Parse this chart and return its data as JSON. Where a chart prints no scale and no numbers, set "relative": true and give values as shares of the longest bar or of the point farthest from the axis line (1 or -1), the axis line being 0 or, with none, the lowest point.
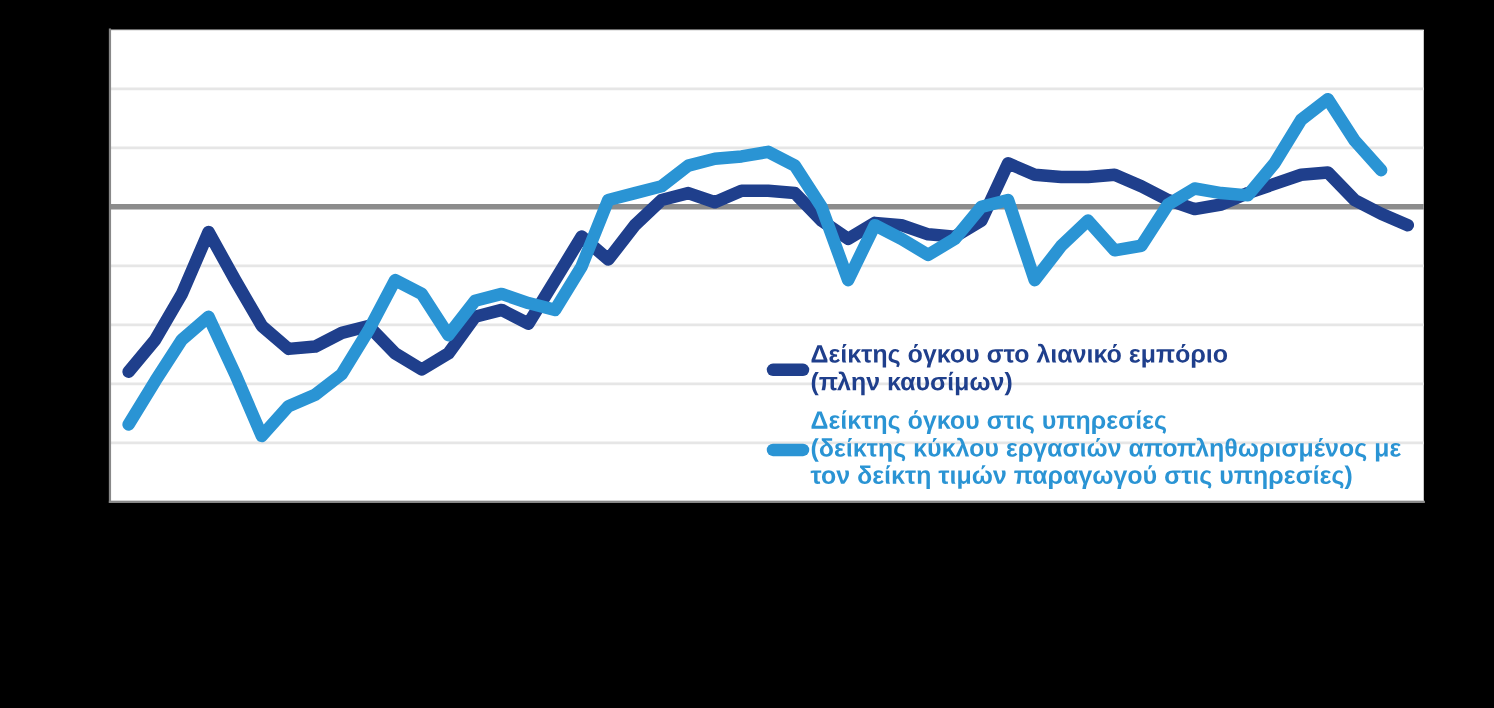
{
  "chart_data": {
    "type": "line",
    "relative": true,
    "grid": "y",
    "legend": "bottom right",
    "line_style": "solid",
    "marker": "none",
    "categories": [
      null,
      null,
      null,
      null,
      null,
      null,
      null,
      null,
      null,
      null,
      null,
      null,
      null,
      null,
      null,
      null,
      null,
      null,
      null,
      null,
      null,
      null,
      null,
      null,
      null,
      null,
      null,
      null,
      null,
      null,
      null,
      null,
      null,
      null,
      null,
      null,
      null,
      null,
      null,
      null,
      null,
      null,
      null,
      null,
      null,
      null,
      null,
      null,
      null
    ],
    "series": [
      {
        "name": "Δείκτης όγκου στο λιανικό εμπόριο\n(πλην καυσίμων)",
        "color": "#1f3f8c",
        "values": [
          -0.72,
          -0.58,
          -0.38,
          -0.11,
          -0.32,
          -0.52,
          -0.62,
          -0.61,
          -0.55,
          -0.52,
          -0.64,
          -0.71,
          -0.64,
          -0.48,
          -0.45,
          -0.51,
          -0.32,
          -0.13,
          -0.23,
          -0.08,
          0.03,
          0.06,
          0.02,
          0.07,
          0.07,
          0.06,
          -0.06,
          -0.14,
          -0.07,
          -0.08,
          -0.12,
          -0.13,
          -0.06,
          0.19,
          0.14,
          0.13,
          0.13,
          0.14,
          0.09,
          0.03,
          -0.01,
          0.01,
          0.06,
          0.1,
          0.14,
          0.15,
          0.03,
          -0.03,
          -0.08
        ]
      },
      {
        "name": "Δείκτης όγκου στις υπηρεσίες\n(δείκτης κύκλου εργασιών αποπληθωρισμένος με\nτον δείκτη τιμών παραγωγού στις υπηρεσίες)",
        "color": "#2a94d4",
        "values": [
          -0.95,
          -0.76,
          -0.58,
          -0.48,
          -0.73,
          -1,
          -0.87,
          -0.82,
          -0.73,
          -0.54,
          -0.32,
          -0.38,
          -0.56,
          -0.41,
          -0.38,
          -0.42,
          -0.45,
          -0.26,
          0.03,
          0.06,
          0.09,
          0.18,
          0.21,
          0.22,
          0.24,
          0.18,
          0.0,
          -0.32,
          -0.08,
          -0.14,
          -0.21,
          -0.14,
          0.0,
          0.03,
          -0.32,
          -0.17,
          -0.06,
          -0.19,
          -0.17,
          0.01,
          0.08,
          0.06,
          0.05,
          0.19,
          0.38,
          0.47,
          0.29,
          0.16,
          null
        ]
      }
    ]
  }
}
